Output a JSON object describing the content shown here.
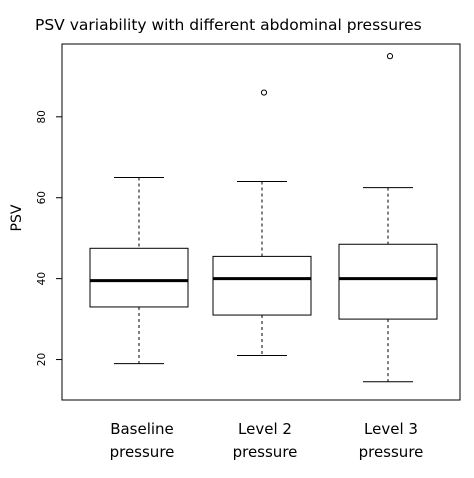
{
  "chart_data": {
    "type": "boxplot",
    "title": "PSV variability with different abdominal pressures",
    "xlabel": "",
    "ylabel": "PSV",
    "ylim": [
      10,
      98
    ],
    "yticks": [
      20,
      40,
      60,
      80
    ],
    "grid": false,
    "categories": [
      {
        "line1": "Baseline",
        "line2": "pressure"
      },
      {
        "line1": "Level 2",
        "line2": "pressure"
      },
      {
        "line1": "Level 3",
        "line2": "pressure"
      }
    ],
    "boxes": [
      {
        "whisker_low": 19,
        "q1": 33,
        "median": 39.5,
        "q3": 47.5,
        "whisker_high": 65,
        "outliers": []
      },
      {
        "whisker_low": 21,
        "q1": 31,
        "median": 40,
        "q3": 45.5,
        "whisker_high": 64,
        "outliers": [
          86
        ]
      },
      {
        "whisker_low": 14.5,
        "q1": 30,
        "median": 40,
        "q3": 48.5,
        "whisker_high": 62.5,
        "outliers": [
          95
        ]
      }
    ]
  }
}
